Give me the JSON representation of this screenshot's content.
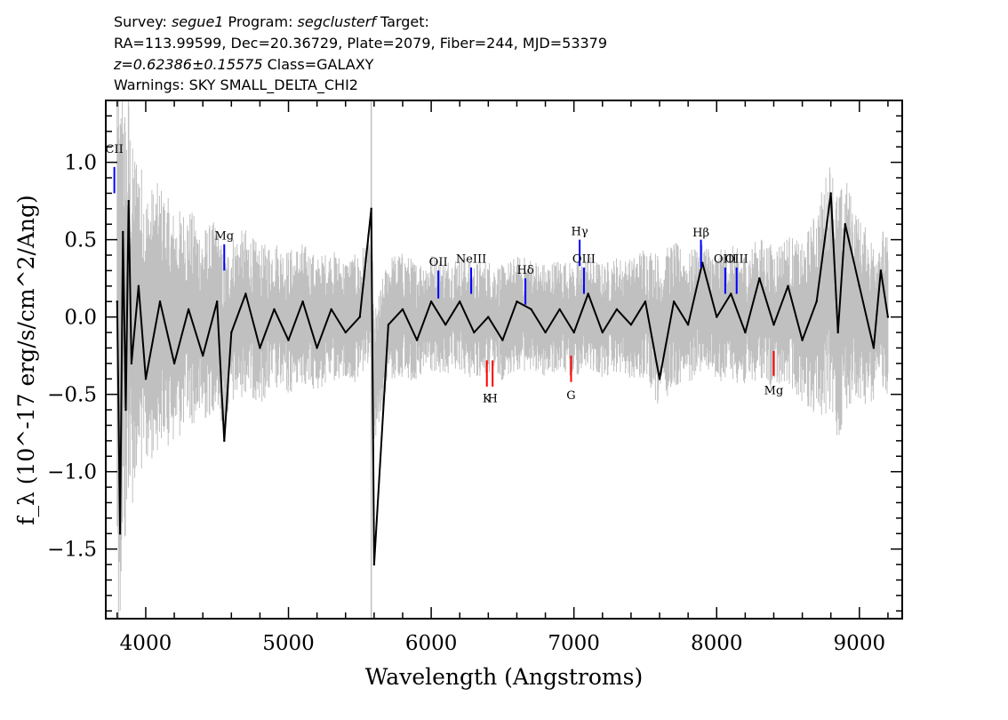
{
  "header": {
    "line1": {
      "survey_label": "Survey: ",
      "survey": "segue1",
      "program_label": " Program: ",
      "program": "segclusterf",
      "target_label": " Target:"
    },
    "line2": "RA=113.99599, Dec=20.36729, Plate=2079, Fiber=244, MJD=53379",
    "line3": {
      "redshift": "z=0.62386±0.15575",
      "class": " Class=GALAXY"
    },
    "line4": "Warnings: SKY SMALL_DELTA_CHI2"
  },
  "chart_data": {
    "type": "line",
    "xlabel": "Wavelength (Angstroms)",
    "ylabel": "f_λ (10^-17 erg/s/cm^2/Ang)",
    "xlim": [
      3720,
      9300
    ],
    "ylim": [
      -1.95,
      1.4
    ],
    "x_ticks": [
      4000,
      5000,
      6000,
      7000,
      8000,
      9000
    ],
    "y_ticks": [
      1.0,
      0.5,
      0.0,
      -0.5,
      -1.0,
      -1.5
    ],
    "y_tick_labels": [
      "1.0",
      "0.5",
      "0.0",
      "−0.5",
      "−1.0",
      "−1.5"
    ],
    "grid": false,
    "colors": {
      "flux": "#000000",
      "error": "#c0c0c0",
      "emission_line": "#0000ff",
      "absorption_line": "#ff0000"
    },
    "series": [
      {
        "role": "flux",
        "x": [
          3800,
          3820,
          3840,
          3860,
          3880,
          3900,
          3950,
          4000,
          4100,
          4200,
          4300,
          4400,
          4500,
          4550,
          4600,
          4700,
          4800,
          4900,
          5000,
          5100,
          5200,
          5300,
          5400,
          5500,
          5580,
          5600,
          5700,
          5800,
          5900,
          6000,
          6100,
          6200,
          6300,
          6400,
          6500,
          6600,
          6700,
          6800,
          6900,
          7000,
          7100,
          7200,
          7300,
          7400,
          7500,
          7600,
          7700,
          7800,
          7900,
          8000,
          8100,
          8200,
          8300,
          8400,
          8500,
          8600,
          8700,
          8800,
          8850,
          8900,
          9000,
          9100,
          9150,
          9200
        ],
        "y": [
          0.1,
          -1.4,
          0.55,
          -0.6,
          0.75,
          -0.3,
          0.2,
          -0.4,
          0.1,
          -0.3,
          0.05,
          -0.25,
          0.1,
          -0.8,
          -0.1,
          0.15,
          -0.2,
          0.05,
          -0.15,
          0.1,
          -0.2,
          0.05,
          -0.1,
          0.0,
          0.7,
          -1.6,
          -0.05,
          0.05,
          -0.15,
          0.1,
          -0.05,
          0.1,
          -0.1,
          0.0,
          -0.15,
          0.1,
          0.05,
          -0.1,
          0.05,
          -0.1,
          0.15,
          -0.1,
          0.05,
          -0.05,
          0.1,
          -0.4,
          0.1,
          -0.05,
          0.35,
          0.0,
          0.15,
          -0.1,
          0.25,
          -0.05,
          0.2,
          -0.15,
          0.1,
          0.8,
          -0.1,
          0.6,
          0.2,
          -0.2,
          0.3,
          0.0
        ]
      },
      {
        "role": "error",
        "x": [
          3800,
          3900,
          4000,
          4200,
          4400,
          4600,
          4800,
          5000,
          5200,
          5400,
          5600,
          5800,
          6000,
          6200,
          6400,
          6600,
          6800,
          7000,
          7200,
          7400,
          7600,
          7800,
          8000,
          8200,
          8400,
          8600,
          8800,
          8900,
          9000,
          9200
        ],
        "y": [
          1.1,
          0.7,
          0.55,
          0.45,
          0.38,
          0.33,
          0.3,
          0.28,
          0.26,
          0.24,
          0.25,
          0.24,
          0.23,
          0.23,
          0.22,
          0.22,
          0.22,
          0.22,
          0.22,
          0.23,
          0.3,
          0.25,
          0.25,
          0.26,
          0.28,
          0.3,
          0.5,
          0.45,
          0.35,
          0.3
        ]
      }
    ],
    "spectral_lines": [
      {
        "label": "CII",
        "wavelength": 3780,
        "kind": "emission",
        "y_top": 0.97,
        "y_bottom": 0.8,
        "label_y": 1.06
      },
      {
        "label": "Mg",
        "wavelength": 4550,
        "kind": "emission",
        "y_top": 0.47,
        "y_bottom": 0.3,
        "label_y": 0.5
      },
      {
        "label": "OII",
        "wavelength": 6050,
        "kind": "emission",
        "y_top": 0.3,
        "y_bottom": 0.12,
        "label_y": 0.33
      },
      {
        "label": "NeIII",
        "wavelength": 6280,
        "kind": "emission",
        "y_top": 0.32,
        "y_bottom": 0.15,
        "label_y": 0.35
      },
      {
        "label": "Hδ",
        "wavelength": 6660,
        "kind": "emission",
        "y_top": 0.25,
        "y_bottom": 0.08,
        "label_y": 0.28
      },
      {
        "label": "Hγ",
        "wavelength": 7040,
        "kind": "emission",
        "y_top": 0.5,
        "y_bottom": 0.33,
        "label_y": 0.53
      },
      {
        "label": "OIII",
        "wavelength": 7070,
        "kind": "emission",
        "y_top": 0.32,
        "y_bottom": 0.15,
        "label_y": 0.35
      },
      {
        "label": "Hβ",
        "wavelength": 7890,
        "kind": "emission",
        "y_top": 0.5,
        "y_bottom": 0.32,
        "label_y": 0.52
      },
      {
        "label": "OIII",
        "wavelength": 8060,
        "kind": "emission",
        "y_top": 0.32,
        "y_bottom": 0.15,
        "label_y": 0.35
      },
      {
        "label": "OIII",
        "wavelength": 8140,
        "kind": "emission",
        "y_top": 0.32,
        "y_bottom": 0.15,
        "label_y": 0.35
      },
      {
        "label": "K",
        "wavelength": 6390,
        "kind": "absorption",
        "y_top": -0.28,
        "y_bottom": -0.45,
        "label_y": -0.55
      },
      {
        "label": "H",
        "wavelength": 6430,
        "kind": "absorption",
        "y_top": -0.28,
        "y_bottom": -0.45,
        "label_y": -0.55
      },
      {
        "label": "G",
        "wavelength": 6980,
        "kind": "absorption",
        "y_top": -0.25,
        "y_bottom": -0.42,
        "label_y": -0.53
      },
      {
        "label": "Mg",
        "wavelength": 8400,
        "kind": "absorption",
        "y_top": -0.22,
        "y_bottom": -0.38,
        "label_y": -0.5
      }
    ]
  }
}
